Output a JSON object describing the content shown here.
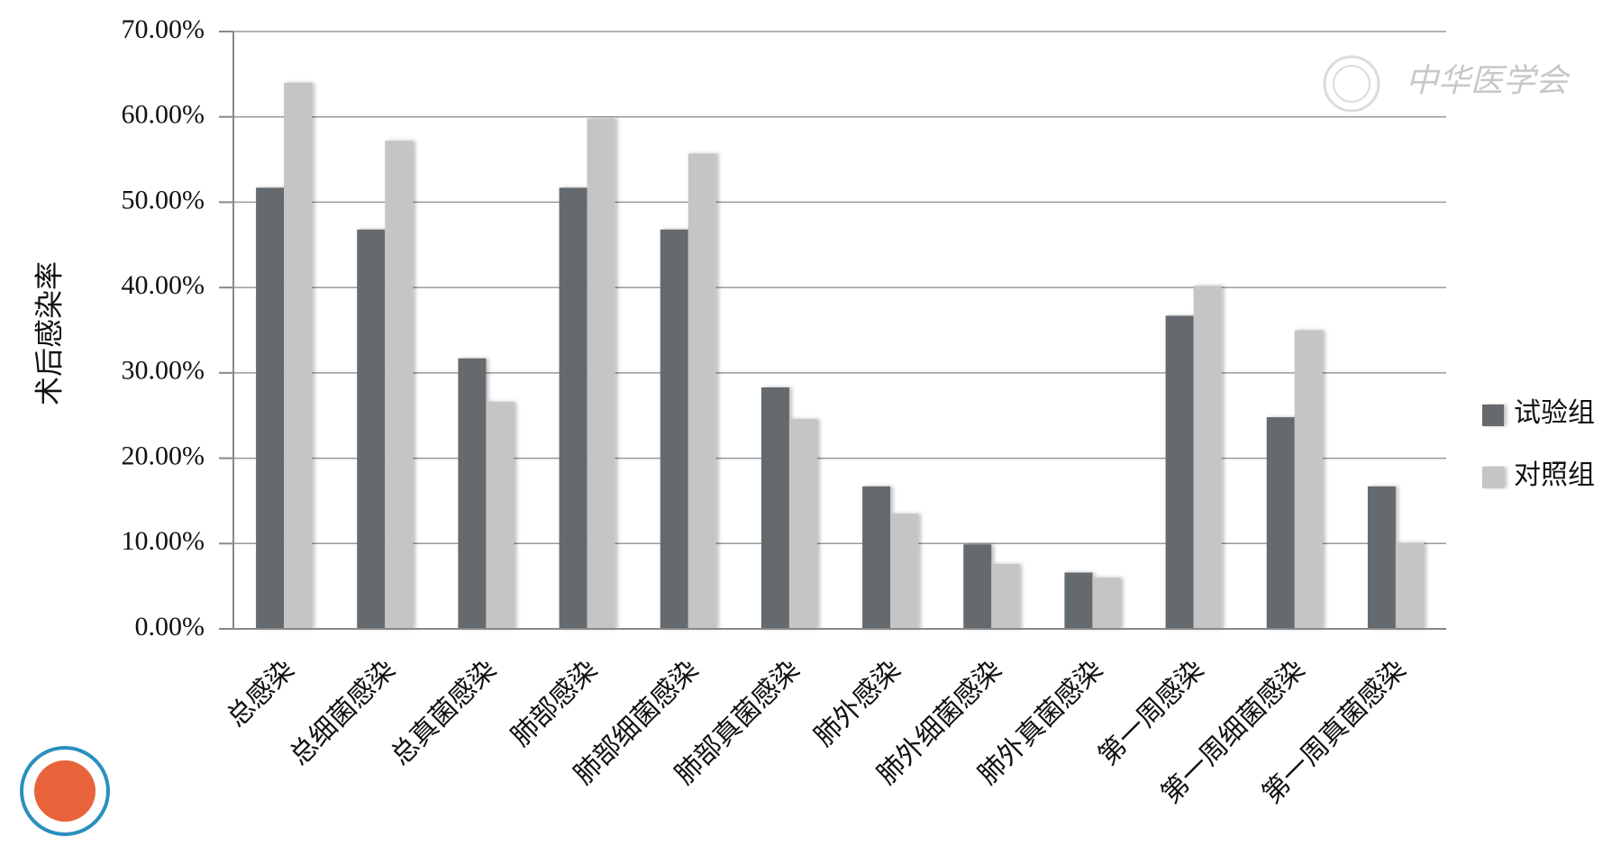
{
  "chart_data": {
    "type": "bar",
    "ylabel": "术后感染率",
    "watermark": "中华医学会",
    "categories": [
      "总感染",
      "总细菌感染",
      "总真菌感染",
      "肺部感染",
      "肺部细菌感染",
      "肺部真菌感染",
      "肺外感染",
      "肺外细菌感染",
      "肺外真菌感染",
      "第一周感染",
      "第一周细菌感染",
      "第一周真菌感染"
    ],
    "series": [
      {
        "name": "试验组",
        "color": "#656b6e",
        "values": [
          51.7,
          46.8,
          31.7,
          51.7,
          46.8,
          28.3,
          16.7,
          9.9,
          6.6,
          36.7,
          24.8,
          16.7
        ]
      },
      {
        "name": "对照组",
        "color": "#c5c5c5",
        "values": [
          64.0,
          57.2,
          26.6,
          59.8,
          55.7,
          24.6,
          13.5,
          7.6,
          6.0,
          40.2,
          35.0,
          10.1
        ]
      }
    ],
    "ylim": [
      0,
      70
    ],
    "yticks": [
      {
        "value": 0,
        "label": "0.00%"
      },
      {
        "value": 10,
        "label": "10.00%"
      },
      {
        "value": 20,
        "label": "20.00%"
      },
      {
        "value": 30,
        "label": "30.00%"
      },
      {
        "value": 40,
        "label": "40.00%"
      },
      {
        "value": 50,
        "label": "50.00%"
      },
      {
        "value": 60,
        "label": "60.00%"
      },
      {
        "value": 70,
        "label": "70.00%"
      }
    ],
    "grid": true,
    "legend": "right"
  }
}
